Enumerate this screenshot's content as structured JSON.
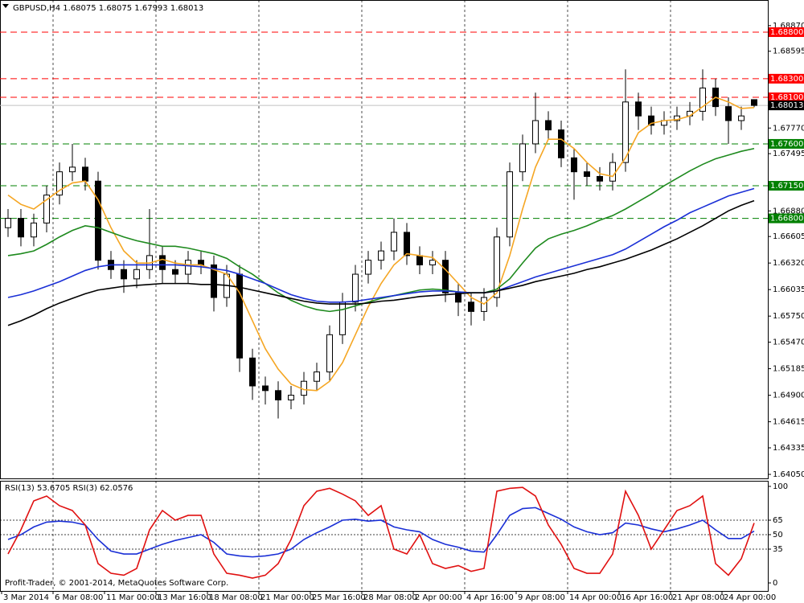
{
  "chart_data": [
    {
      "type": "candlestick",
      "title": "GBPUSD,H4  1.68075 1.68075 1.67993 1.68013",
      "categories": [
        "3 Mar 2014",
        null,
        null,
        null,
        "6 Mar 08:00",
        null,
        null,
        null,
        "11 Mar 00:00",
        null,
        null,
        null,
        "13 Mar 16:00",
        null,
        null,
        null,
        "18 Mar 08:00",
        null,
        null,
        null,
        "21 Mar 00:00",
        null,
        null,
        null,
        "25 Mar 16:00",
        null,
        null,
        null,
        "28 Mar 08:00",
        null,
        null,
        null,
        "2 Apr 00:00",
        null,
        null,
        null,
        "4 Apr 16:00",
        null,
        null,
        null,
        "9 Apr 08:00",
        null,
        null,
        null,
        "14 Apr 00:00",
        null,
        null,
        null,
        "16 Apr 16:00",
        null,
        null,
        null,
        "21 Apr 08:00",
        null,
        null,
        null,
        "24 Apr 00:00",
        null,
        null
      ],
      "open": [
        1.667,
        1.668,
        1.666,
        1.6675,
        1.6705,
        1.673,
        1.6735,
        1.672,
        1.6635,
        1.6625,
        1.6615,
        1.6625,
        1.664,
        1.6625,
        1.662,
        1.6635,
        1.663,
        1.6595,
        1.662,
        1.653,
        1.65,
        1.6495,
        1.6485,
        1.649,
        1.6505,
        1.6515,
        1.6555,
        1.659,
        1.662,
        1.6635,
        1.6645,
        1.6665,
        1.664,
        1.663,
        1.6635,
        1.66,
        1.659,
        1.658,
        1.6595,
        1.666,
        1.673,
        1.676,
        1.6785,
        1.6775,
        1.6745,
        1.673,
        1.6725,
        1.672,
        1.674,
        1.6805,
        1.679,
        1.678,
        1.6785,
        1.679,
        1.6795,
        1.682,
        1.68,
        1.6785,
        1.68075
      ],
      "high": [
        1.669,
        1.669,
        1.6685,
        1.6715,
        1.674,
        1.676,
        1.6745,
        1.673,
        1.6645,
        1.6635,
        1.6635,
        1.669,
        1.665,
        1.6635,
        1.6645,
        1.6645,
        1.664,
        1.663,
        1.663,
        1.654,
        1.651,
        1.6505,
        1.65,
        1.6515,
        1.6525,
        1.6565,
        1.66,
        1.663,
        1.6645,
        1.6655,
        1.668,
        1.6675,
        1.665,
        1.6645,
        1.6645,
        1.661,
        1.66,
        1.6605,
        1.667,
        1.674,
        1.677,
        1.6815,
        1.6795,
        1.6785,
        1.6755,
        1.674,
        1.6735,
        1.675,
        1.684,
        1.6815,
        1.68,
        1.6795,
        1.68,
        1.6805,
        1.684,
        1.683,
        1.681,
        1.68,
        1.68075
      ],
      "low": [
        1.666,
        1.665,
        1.665,
        1.6665,
        1.6695,
        1.672,
        1.671,
        1.6625,
        1.6615,
        1.66,
        1.6605,
        1.6615,
        1.661,
        1.661,
        1.661,
        1.662,
        1.658,
        1.6585,
        1.6515,
        1.6485,
        1.648,
        1.6465,
        1.6475,
        1.648,
        1.6495,
        1.6505,
        1.6545,
        1.658,
        1.661,
        1.6625,
        1.6635,
        1.663,
        1.662,
        1.662,
        1.659,
        1.6575,
        1.6565,
        1.657,
        1.6585,
        1.665,
        1.672,
        1.675,
        1.6765,
        1.6735,
        1.67,
        1.6715,
        1.671,
        1.671,
        1.673,
        1.6775,
        1.677,
        1.677,
        1.6775,
        1.678,
        1.6785,
        1.679,
        1.676,
        1.6775,
        1.67993
      ],
      "close": [
        1.668,
        1.666,
        1.6675,
        1.6705,
        1.673,
        1.6735,
        1.672,
        1.6635,
        1.6625,
        1.6615,
        1.6625,
        1.664,
        1.6625,
        1.662,
        1.6635,
        1.663,
        1.6595,
        1.662,
        1.653,
        1.65,
        1.6495,
        1.6485,
        1.649,
        1.6505,
        1.6515,
        1.6555,
        1.659,
        1.662,
        1.6635,
        1.6645,
        1.6665,
        1.664,
        1.663,
        1.6635,
        1.66,
        1.659,
        1.658,
        1.6595,
        1.666,
        1.673,
        1.676,
        1.6785,
        1.6775,
        1.6745,
        1.673,
        1.6725,
        1.672,
        1.674,
        1.6805,
        1.679,
        1.678,
        1.6785,
        1.679,
        1.6795,
        1.682,
        1.68,
        1.6785,
        1.679,
        1.68013
      ],
      "color_up": "#ffffff",
      "color_down": "#000000",
      "color_edge": "#000000",
      "series": [
        {
          "color": "#f5a623",
          "values": [
            1.6705,
            1.6695,
            1.669,
            1.67,
            1.671,
            1.6718,
            1.672,
            1.67,
            1.667,
            1.6645,
            1.6632,
            1.6632,
            1.6636,
            1.6632,
            1.663,
            1.663,
            1.6625,
            1.662,
            1.66,
            1.657,
            1.654,
            1.6518,
            1.6502,
            1.6496,
            1.6495,
            1.6505,
            1.6525,
            1.6555,
            1.6585,
            1.661,
            1.663,
            1.6642,
            1.664,
            1.6638,
            1.6625,
            1.661,
            1.6595,
            1.6588,
            1.66,
            1.664,
            1.669,
            1.6735,
            1.6765,
            1.6765,
            1.6755,
            1.674,
            1.6728,
            1.6725,
            1.6745,
            1.6772,
            1.6782,
            1.6785,
            1.6786,
            1.679,
            1.68,
            1.681,
            1.6805,
            1.6798,
            1.6799
          ]
        },
        {
          "color": "#1e8a1e",
          "values": [
            1.664,
            1.6642,
            1.6645,
            1.6652,
            1.666,
            1.6667,
            1.6672,
            1.667,
            1.6665,
            1.666,
            1.6656,
            1.6653,
            1.665,
            1.665,
            1.6648,
            1.6645,
            1.6642,
            1.6637,
            1.6628,
            1.662,
            1.661,
            1.66,
            1.6592,
            1.6586,
            1.6582,
            1.658,
            1.6582,
            1.6586,
            1.659,
            1.6594,
            1.6597,
            1.66,
            1.6603,
            1.6604,
            1.6603,
            1.6601,
            1.66,
            1.66,
            1.6604,
            1.6615,
            1.6632,
            1.6648,
            1.6658,
            1.6663,
            1.6667,
            1.6672,
            1.6678,
            1.6683,
            1.669,
            1.6698,
            1.6706,
            1.6715,
            1.6723,
            1.6731,
            1.6738,
            1.6744,
            1.6748,
            1.6752,
            1.6755
          ]
        },
        {
          "color": "#1a2fd6",
          "values": [
            1.6595,
            1.6598,
            1.6602,
            1.6607,
            1.6612,
            1.6618,
            1.6624,
            1.6628,
            1.663,
            1.663,
            1.663,
            1.663,
            1.663,
            1.663,
            1.6629,
            1.6628,
            1.6626,
            1.6624,
            1.662,
            1.6615,
            1.661,
            1.6604,
            1.6598,
            1.6594,
            1.6591,
            1.659,
            1.659,
            1.6591,
            1.6593,
            1.6595,
            1.6597,
            1.6599,
            1.6601,
            1.6602,
            1.6602,
            1.6601,
            1.66,
            1.66,
            1.6602,
            1.6607,
            1.6612,
            1.6617,
            1.6621,
            1.6625,
            1.6629,
            1.6633,
            1.6637,
            1.6641,
            1.6647,
            1.6655,
            1.6663,
            1.6671,
            1.6678,
            1.6686,
            1.6692,
            1.6698,
            1.6704,
            1.6708,
            1.6712
          ]
        },
        {
          "color": "#000000",
          "values": [
            1.6565,
            1.657,
            1.6576,
            1.6583,
            1.6589,
            1.6594,
            1.6599,
            1.6603,
            1.6605,
            1.6607,
            1.6608,
            1.6609,
            1.661,
            1.661,
            1.661,
            1.6609,
            1.6609,
            1.6608,
            1.6606,
            1.6603,
            1.66,
            1.6597,
            1.6594,
            1.6591,
            1.6589,
            1.6588,
            1.6588,
            1.6588,
            1.6589,
            1.6591,
            1.6592,
            1.6594,
            1.6596,
            1.6597,
            1.6598,
            1.6599,
            1.66,
            1.66,
            1.6602,
            1.6605,
            1.6608,
            1.6612,
            1.6615,
            1.6618,
            1.6621,
            1.6625,
            1.6628,
            1.6632,
            1.6636,
            1.6641,
            1.6646,
            1.6652,
            1.6658,
            1.6665,
            1.6672,
            1.668,
            1.6688,
            1.6694,
            1.6699
          ]
        }
      ],
      "levels": [
        {
          "value": 1.688,
          "label": "1.68800",
          "color": "#ff0000",
          "style": "dashed"
        },
        {
          "value": 1.683,
          "label": "1.68300",
          "color": "#ff0000",
          "style": "dashed"
        },
        {
          "value": 1.681,
          "label": "1.68100",
          "color": "#ff0000",
          "style": "dashed"
        },
        {
          "value": 1.68013,
          "label": "1.68013",
          "color": "#000000",
          "style": "solid"
        },
        {
          "value": 1.676,
          "label": "1.67600",
          "color": "#008000",
          "style": "dashed"
        },
        {
          "value": 1.6715,
          "label": "1.67150",
          "color": "#008000",
          "style": "dashed"
        },
        {
          "value": 1.668,
          "label": "1.66800",
          "color": "#008000",
          "style": "dashed"
        }
      ],
      "ylim": [
        1.64007,
        1.69128
      ],
      "yticks": [
        {
          "value": 1.6887,
          "label": "1.68870"
        },
        {
          "value": 1.68595,
          "label": "1.68595"
        },
        {
          "value": 1.6777,
          "label": "1.67770"
        },
        {
          "value": 1.67495,
          "label": "1.67495"
        },
        {
          "value": 1.6688,
          "label": "1.66880"
        },
        {
          "value": 1.66605,
          "label": "1.66605"
        },
        {
          "value": 1.6632,
          "label": "1.66320"
        },
        {
          "value": 1.66035,
          "label": "1.66035"
        },
        {
          "value": 1.6575,
          "label": "1.65750"
        },
        {
          "value": 1.6547,
          "label": "1.65470"
        },
        {
          "value": 1.65185,
          "label": "1.65185"
        },
        {
          "value": 1.649,
          "label": "1.64900"
        },
        {
          "value": 1.64615,
          "label": "1.64615"
        },
        {
          "value": 1.64335,
          "label": "1.64335"
        },
        {
          "value": 1.6405,
          "label": "1.64050"
        }
      ]
    },
    {
      "type": "line",
      "title": "RSI(13) 53.6705  RSI(3) 62.0576",
      "series": [
        {
          "color": "#1a2fd6",
          "values": [
            45,
            50,
            58,
            63,
            64,
            63,
            60,
            45,
            33,
            30,
            30,
            35,
            40,
            44,
            47,
            50,
            42,
            30,
            28,
            27,
            28,
            30,
            35,
            45,
            52,
            58,
            65,
            66,
            64,
            65,
            58,
            55,
            53,
            45,
            40,
            37,
            33,
            32,
            50,
            70,
            77,
            78,
            72,
            66,
            58,
            53,
            50,
            52,
            62,
            60,
            56,
            53,
            56,
            60,
            65,
            55,
            46,
            46,
            53.6705
          ]
        },
        {
          "color": "#e01010",
          "values": [
            30,
            55,
            85,
            90,
            80,
            75,
            60,
            20,
            10,
            8,
            15,
            55,
            75,
            65,
            70,
            70,
            30,
            10,
            8,
            5,
            8,
            20,
            45,
            80,
            95,
            98,
            92,
            85,
            70,
            80,
            35,
            30,
            50,
            20,
            15,
            18,
            12,
            15,
            95,
            98,
            99,
            90,
            60,
            40,
            15,
            10,
            10,
            30,
            95,
            70,
            35,
            55,
            75,
            80,
            90,
            20,
            8,
            25,
            62.0576
          ]
        }
      ],
      "levels": [
        65,
        50,
        35
      ],
      "ylim": [
        -8.3,
        105.8
      ],
      "yticks": [
        100,
        65,
        50,
        35,
        0
      ]
    }
  ],
  "footer": "Profit-Trader, © 2001-2014, MetaQuotes Software Corp."
}
